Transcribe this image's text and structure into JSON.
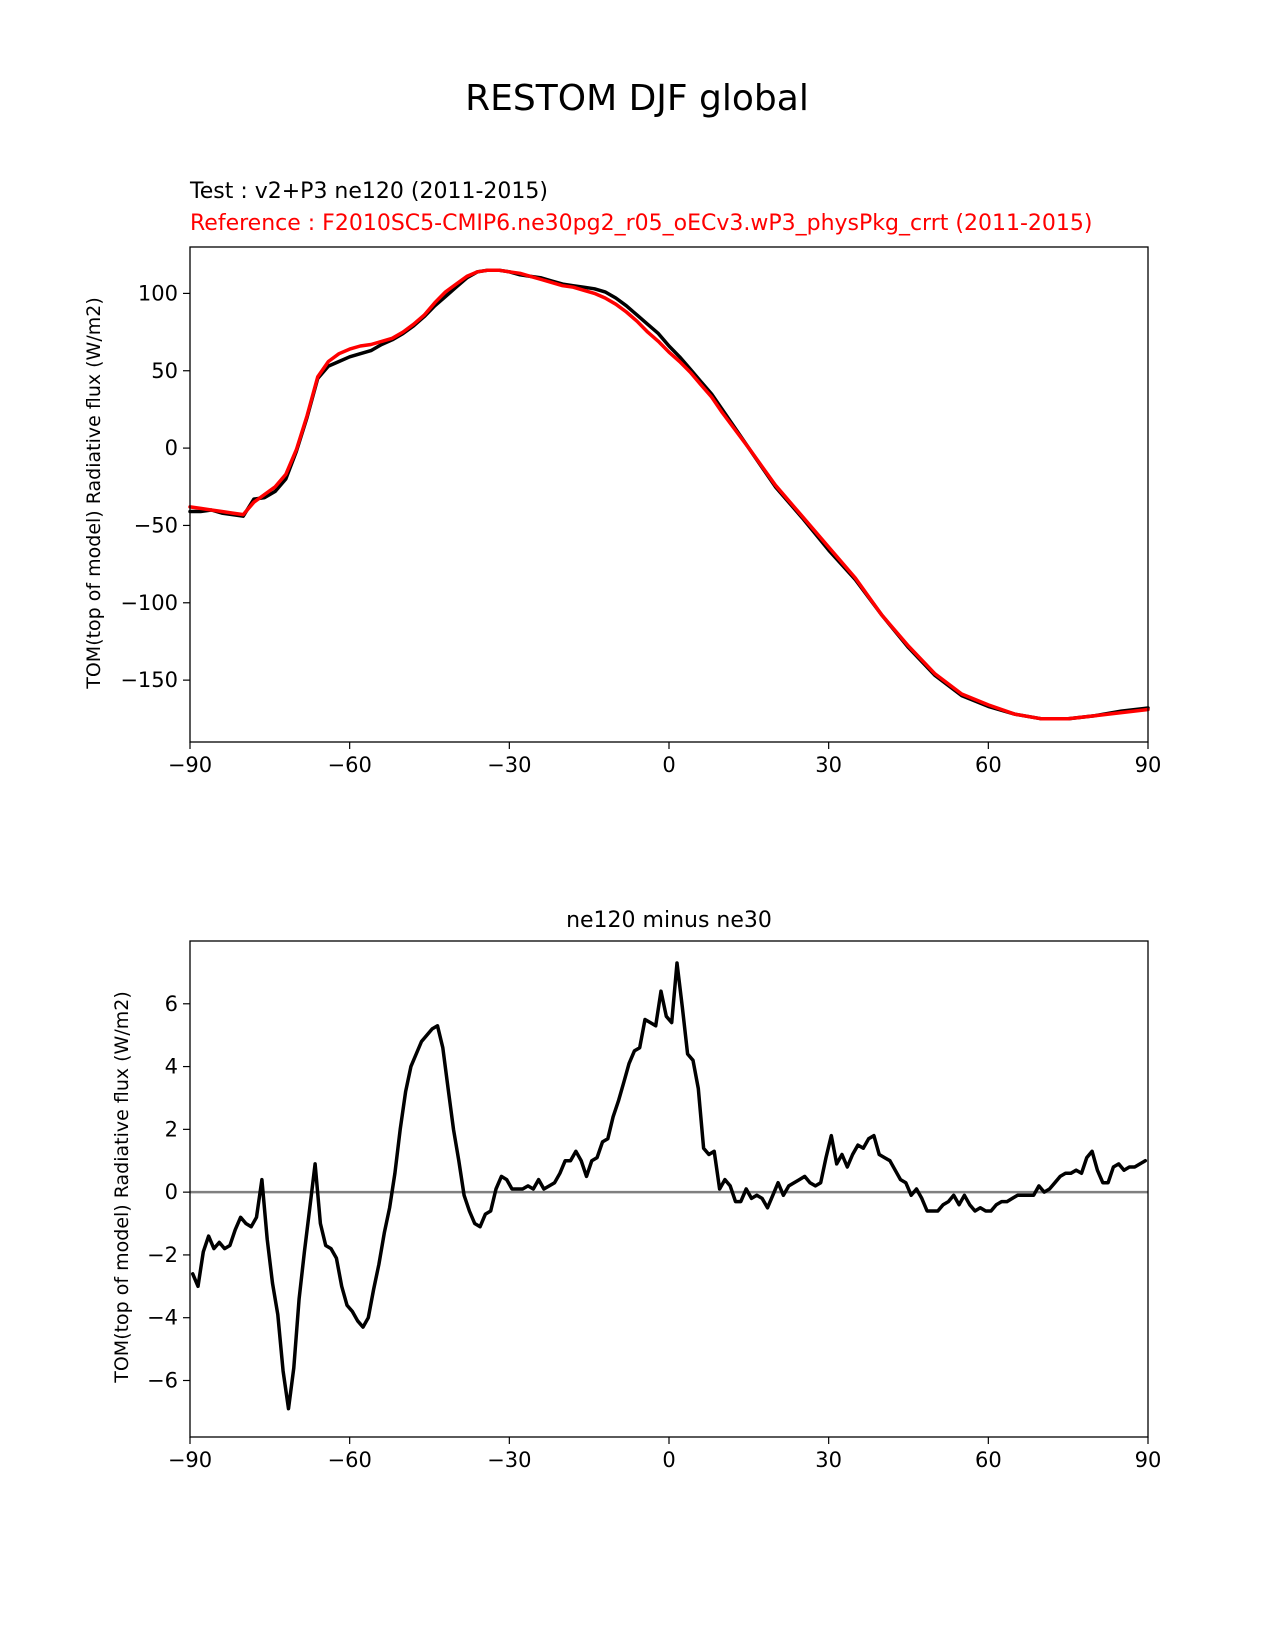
{
  "suptitle": "RESTOM DJF global",
  "chart_data": [
    {
      "type": "line",
      "title_test": "Test : v2+P3 ne120 (2011-2015)",
      "title_reference": "Reference : F2010SC5-CMIP6.ne30pg2_r05_oECv3.wP3_physPkg_crrt (2011-2015)",
      "xlabel": "",
      "ylabel": "TOM(top of model) Radiative flux (W/m2)",
      "xlim": [
        -90,
        90
      ],
      "ylim": [
        -190,
        130
      ],
      "xticks": [
        -90,
        -60,
        -30,
        0,
        30,
        60,
        90
      ],
      "xtick_labels": [
        "−90",
        "−60",
        "−30",
        "0",
        "30",
        "60",
        "90"
      ],
      "yticks": [
        -150,
        -100,
        -50,
        0,
        50,
        100
      ],
      "ytick_labels": [
        "−150",
        "−100",
        "−50",
        "0",
        "50",
        "100"
      ],
      "series": [
        {
          "name": "Test",
          "color": "#000000",
          "x": [
            -90,
            -88,
            -86,
            -84,
            -82,
            -80,
            -78,
            -76,
            -74,
            -72,
            -70,
            -68,
            -66,
            -64,
            -62,
            -60,
            -58,
            -56,
            -54,
            -52,
            -50,
            -48,
            -46,
            -44,
            -42,
            -40,
            -38,
            -36,
            -34,
            -32,
            -30,
            -28,
            -26,
            -24,
            -22,
            -20,
            -18,
            -16,
            -14,
            -12,
            -10,
            -8,
            -6,
            -4,
            -2,
            0,
            2,
            4,
            6,
            8,
            10,
            15,
            20,
            25,
            30,
            35,
            40,
            45,
            50,
            55,
            60,
            65,
            70,
            75,
            80,
            85,
            90
          ],
          "y": [
            -41,
            -41,
            -40,
            -42,
            -43,
            -44,
            -33,
            -32,
            -28,
            -20,
            -2,
            20,
            45,
            53,
            56,
            59,
            61,
            63,
            67,
            70,
            74,
            79,
            85,
            92,
            98,
            104,
            110,
            114,
            115,
            115,
            114,
            112,
            111,
            110,
            108,
            106,
            105,
            104,
            103,
            101,
            97,
            92,
            86,
            80,
            74,
            66,
            59,
            51,
            43,
            35,
            25,
            0,
            -25,
            -45,
            -66,
            -85,
            -108,
            -129,
            -147,
            -160,
            -167,
            -172,
            -175,
            -175,
            -173,
            -170,
            -168
          ]
        },
        {
          "name": "Reference",
          "color": "#ff0000",
          "x": [
            -90,
            -88,
            -86,
            -84,
            -82,
            -80,
            -78,
            -76,
            -74,
            -72,
            -70,
            -68,
            -66,
            -64,
            -62,
            -60,
            -58,
            -56,
            -54,
            -52,
            -50,
            -48,
            -46,
            -44,
            -42,
            -40,
            -38,
            -36,
            -34,
            -32,
            -30,
            -28,
            -26,
            -24,
            -22,
            -20,
            -18,
            -16,
            -14,
            -12,
            -10,
            -8,
            -6,
            -4,
            -2,
            0,
            2,
            4,
            6,
            8,
            10,
            15,
            20,
            25,
            30,
            35,
            40,
            45,
            50,
            55,
            60,
            65,
            70,
            75,
            80,
            85,
            90
          ],
          "y": [
            -38,
            -39,
            -40,
            -41,
            -42,
            -43,
            -35,
            -30,
            -25,
            -17,
            -1,
            21,
            46,
            56,
            61,
            64,
            66,
            67,
            69,
            71,
            75,
            80,
            86,
            94,
            101,
            106,
            111,
            114,
            115,
            115,
            114,
            113,
            111,
            109,
            107,
            105,
            104,
            102,
            100,
            97,
            93,
            88,
            82,
            75,
            69,
            62,
            56,
            49,
            41,
            33,
            23,
            0,
            -24,
            -44,
            -64,
            -84,
            -108,
            -128,
            -146,
            -159,
            -166,
            -172,
            -175,
            -175,
            -173,
            -171,
            -169
          ]
        }
      ]
    },
    {
      "type": "line",
      "title": "ne120 minus ne30",
      "xlabel": "",
      "ylabel": "TOM(top of model) Radiative flux (W/m2)",
      "xlim": [
        -90,
        90
      ],
      "ylim": [
        -7.8,
        8.0
      ],
      "xticks": [
        -90,
        -60,
        -30,
        0,
        30,
        60,
        90
      ],
      "xtick_labels": [
        "−90",
        "−60",
        "−30",
        "0",
        "30",
        "60",
        "90"
      ],
      "yticks": [
        -6,
        -4,
        -2,
        0,
        2,
        4,
        6
      ],
      "ytick_labels": [
        "−6",
        "−4",
        "−2",
        "0",
        "2",
        "4",
        "6"
      ],
      "zero_line_color": "#808080",
      "series": [
        {
          "name": "ne120 minus ne30",
          "color": "#000000",
          "x": [
            -89.5,
            -88.5,
            -87.5,
            -86.5,
            -85.5,
            -84.5,
            -83.5,
            -82.5,
            -81.5,
            -80.5,
            -79.5,
            -78.5,
            -77.5,
            -76.5,
            -75.5,
            -74.5,
            -73.5,
            -72.5,
            -71.5,
            -70.5,
            -69.5,
            -68.5,
            -67.5,
            -66.5,
            -65.5,
            -64.5,
            -63.5,
            -62.5,
            -61.5,
            -60.5,
            -59.5,
            -58.5,
            -57.5,
            -56.5,
            -55.5,
            -54.5,
            -53.5,
            -52.5,
            -51.5,
            -50.5,
            -49.5,
            -48.5,
            -47.5,
            -46.5,
            -45.5,
            -44.5,
            -43.5,
            -42.5,
            -41.5,
            -40.5,
            -39.5,
            -38.5,
            -37.5,
            -36.5,
            -35.5,
            -34.5,
            -33.5,
            -32.5,
            -31.5,
            -30.5,
            -29.5,
            -28.5,
            -27.5,
            -26.5,
            -25.5,
            -24.5,
            -23.5,
            -22.5,
            -21.5,
            -20.5,
            -19.5,
            -18.5,
            -17.5,
            -16.5,
            -15.5,
            -14.5,
            -13.5,
            -12.5,
            -11.5,
            -10.5,
            -9.5,
            -8.5,
            -7.5,
            -6.5,
            -5.5,
            -4.5,
            -3.5,
            -2.5,
            -1.5,
            -0.5,
            0.5,
            1.5,
            2.5,
            3.5,
            4.5,
            5.5,
            6.5,
            7.5,
            8.5,
            9.5,
            10.5,
            11.5,
            12.5,
            13.5,
            14.5,
            15.5,
            16.5,
            17.5,
            18.5,
            19.5,
            20.5,
            21.5,
            22.5,
            23.5,
            24.5,
            25.5,
            26.5,
            27.5,
            28.5,
            29.5,
            30.5,
            31.5,
            32.5,
            33.5,
            34.5,
            35.5,
            36.5,
            37.5,
            38.5,
            39.5,
            40.5,
            41.5,
            42.5,
            43.5,
            44.5,
            45.5,
            46.5,
            47.5,
            48.5,
            49.5,
            50.5,
            51.5,
            52.5,
            53.5,
            54.5,
            55.5,
            56.5,
            57.5,
            58.5,
            59.5,
            60.5,
            61.5,
            62.5,
            63.5,
            64.5,
            65.5,
            66.5,
            67.5,
            68.5,
            69.5,
            70.5,
            71.5,
            72.5,
            73.5,
            74.5,
            75.5,
            76.5,
            77.5,
            78.5,
            79.5,
            80.5,
            81.5,
            82.5,
            83.5,
            84.5,
            85.5,
            86.5,
            87.5,
            88.5,
            89.5
          ],
          "y": [
            -2.6,
            -3.0,
            -1.9,
            -1.4,
            -1.8,
            -1.6,
            -1.8,
            -1.7,
            -1.2,
            -0.8,
            -1.0,
            -1.1,
            -0.8,
            0.4,
            -1.5,
            -2.9,
            -3.9,
            -5.7,
            -6.9,
            -5.6,
            -3.4,
            -1.9,
            -0.5,
            0.9,
            -1.0,
            -1.7,
            -1.8,
            -2.1,
            -3.0,
            -3.6,
            -3.8,
            -4.1,
            -4.3,
            -4.0,
            -3.1,
            -2.3,
            -1.3,
            -0.5,
            0.6,
            2.0,
            3.2,
            4.0,
            4.4,
            4.8,
            5.0,
            5.2,
            5.3,
            4.6,
            3.3,
            2.0,
            1.0,
            -0.1,
            -0.6,
            -1.0,
            -1.1,
            -0.7,
            -0.6,
            0.1,
            0.5,
            0.4,
            0.1,
            0.1,
            0.1,
            0.2,
            0.1,
            0.4,
            0.1,
            0.2,
            0.3,
            0.6,
            1.0,
            1.0,
            1.3,
            1.0,
            0.5,
            1.0,
            1.1,
            1.6,
            1.7,
            2.4,
            2.9,
            3.5,
            4.1,
            4.5,
            4.6,
            5.5,
            5.4,
            5.3,
            6.4,
            5.6,
            5.4,
            7.3,
            5.9,
            4.4,
            4.2,
            3.3,
            1.4,
            1.2,
            1.3,
            0.1,
            0.4,
            0.2,
            -0.3,
            -0.3,
            0.1,
            -0.2,
            -0.1,
            -0.2,
            -0.5,
            -0.1,
            0.3,
            -0.1,
            0.2,
            0.3,
            0.4,
            0.5,
            0.3,
            0.2,
            0.3,
            1.1,
            1.8,
            0.9,
            1.2,
            0.8,
            1.2,
            1.5,
            1.4,
            1.7,
            1.8,
            1.2,
            1.1,
            1.0,
            0.7,
            0.4,
            0.3,
            -0.1,
            0.1,
            -0.2,
            -0.6,
            -0.6,
            -0.6,
            -0.4,
            -0.3,
            -0.1,
            -0.4,
            -0.1,
            -0.4,
            -0.6,
            -0.5,
            -0.6,
            -0.6,
            -0.4,
            -0.3,
            -0.3,
            -0.2,
            -0.1,
            -0.1,
            -0.1,
            -0.1,
            0.2,
            0.0,
            0.1,
            0.3,
            0.5,
            0.6,
            0.6,
            0.7,
            0.6,
            1.1,
            1.3,
            0.7,
            0.3,
            0.3,
            0.8,
            0.9,
            0.7,
            0.8,
            0.8,
            0.9,
            1.0
          ]
        }
      ]
    }
  ]
}
